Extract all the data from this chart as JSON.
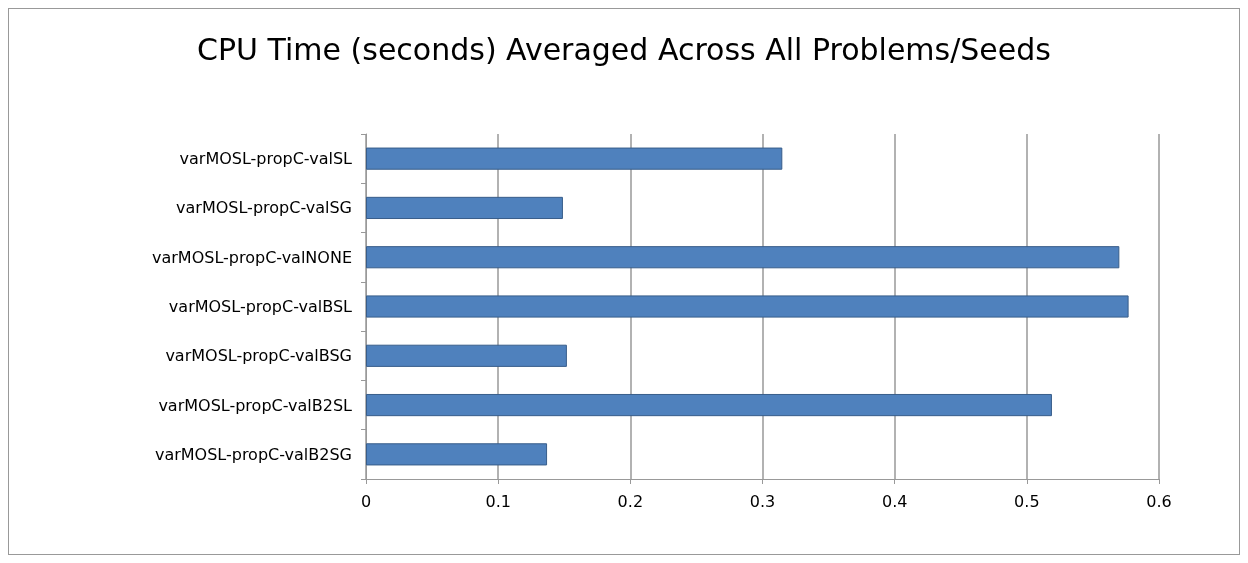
{
  "chart_data": {
    "type": "bar",
    "orientation": "horizontal",
    "title": "CPU Time (seconds) Averaged Across All Problems/Seeds",
    "categories": [
      "varMOSL-propC-valSL",
      "varMOSL-propC-valSG",
      "varMOSL-propC-valNONE",
      "varMOSL-propC-valBSL",
      "varMOSL-propC-valBSG",
      "varMOSL-propC-valB2SL",
      "varMOSL-propC-valB2SG"
    ],
    "values": [
      0.315,
      0.149,
      0.57,
      0.577,
      0.152,
      0.519,
      0.137
    ],
    "color": "#4f81bd",
    "xlim": [
      0,
      0.6
    ],
    "xticks": [
      0,
      0.1,
      0.2,
      0.3,
      0.4,
      0.5,
      0.6
    ],
    "grid": "x"
  }
}
